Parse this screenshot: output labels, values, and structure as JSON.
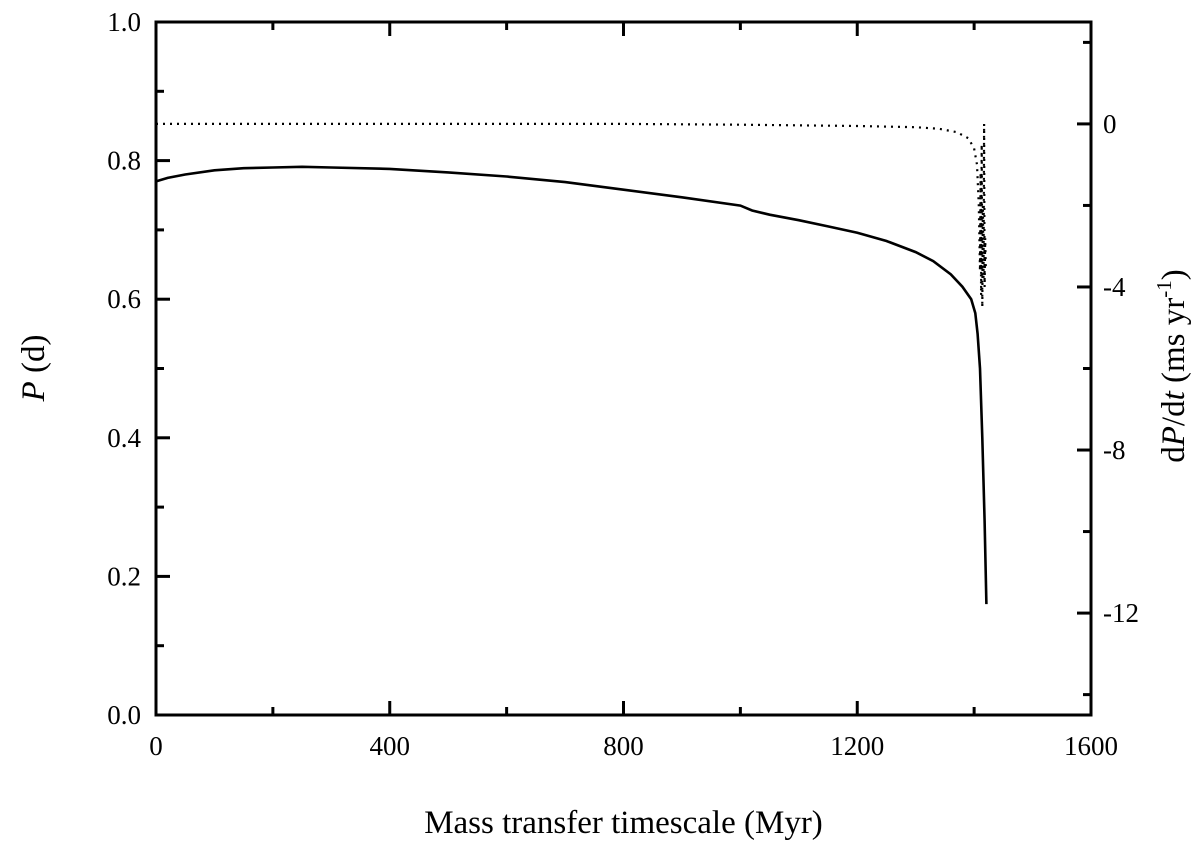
{
  "chart_data": {
    "type": "line",
    "title": "",
    "xlabel": "Mass transfer timescale (Myr)",
    "ylabel": {
      "italic": "P",
      "rest": " (d)"
    },
    "y2label": {
      "pre": "d",
      "italic1": "P",
      "mid": "/d",
      "italic2": "t",
      "post": " (ms yr",
      "sup": "-1",
      "end": ")"
    },
    "xlim": [
      0,
      1600
    ],
    "ylim": [
      0,
      1.0
    ],
    "y2lim": [
      -14.5,
      2.5
    ],
    "x_ticks": [
      "0",
      "400",
      "800",
      "1200",
      "1600"
    ],
    "y_ticks": [
      "0.0",
      "0.2",
      "0.4",
      "0.6",
      "0.8",
      "1.0"
    ],
    "y2_ticks": [
      "0",
      "-4",
      "-8",
      "-12"
    ],
    "grid": false,
    "legend": "none",
    "series": [
      {
        "axis": "left",
        "style": "solid",
        "x": [
          0,
          20,
          50,
          100,
          150,
          200,
          250,
          300,
          400,
          500,
          600,
          700,
          800,
          900,
          1000,
          1020,
          1050,
          1100,
          1150,
          1200,
          1250,
          1300,
          1330,
          1360,
          1380,
          1395,
          1402,
          1406,
          1410,
          1414,
          1418,
          1421
        ],
        "y": [
          0.77,
          0.775,
          0.78,
          0.786,
          0.789,
          0.79,
          0.791,
          0.79,
          0.788,
          0.783,
          0.777,
          0.769,
          0.758,
          0.747,
          0.735,
          0.728,
          0.722,
          0.714,
          0.705,
          0.696,
          0.684,
          0.668,
          0.655,
          0.636,
          0.618,
          0.6,
          0.58,
          0.55,
          0.5,
          0.4,
          0.28,
          0.16
        ]
      },
      {
        "axis": "right",
        "style": "dotted",
        "x": [
          0,
          200,
          400,
          600,
          800,
          1000,
          1200,
          1300,
          1340,
          1370,
          1390,
          1400,
          1405,
          1408,
          1410,
          1411,
          1412,
          1413,
          1414,
          1415,
          1416,
          1417,
          1418,
          1419,
          1420
        ],
        "y": [
          0.0,
          0.0,
          0.0,
          0.0,
          0.0,
          -0.02,
          -0.05,
          -0.08,
          -0.12,
          -0.2,
          -0.35,
          -0.6,
          -1.0,
          -2.0,
          -3.6,
          -1.2,
          -4.2,
          -0.5,
          -4.5,
          -2.0,
          -3.8,
          0.0,
          -4.0,
          -2.8,
          -3.5
        ]
      }
    ]
  }
}
